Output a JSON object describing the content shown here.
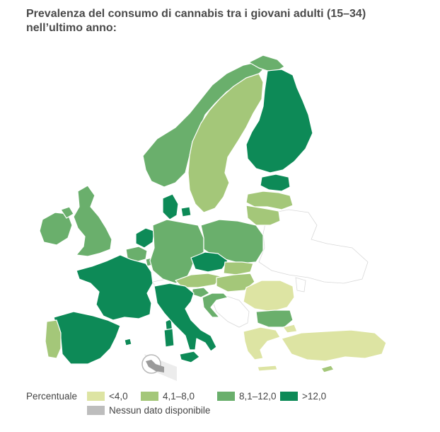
{
  "title": {
    "line1": "Prevalenza del consumo di cannabis tra i giovani adulti (15–34)",
    "line2": "nell’ultimo anno:"
  },
  "colors": {
    "low": "#dde4a3",
    "mid_low": "#a4c779",
    "mid_high": "#6aaf6c",
    "high": "#0d8a57",
    "no_data": "#ffffff",
    "no_data_swatch": "#bdbdbd",
    "border": "#ffffff"
  },
  "legend": {
    "label": "Percentuale",
    "items": [
      {
        "key": "low",
        "text": "<4,0"
      },
      {
        "key": "mid_low",
        "text": "4,1–8,0"
      },
      {
        "key": "mid_high",
        "text": "8,1–12,0"
      },
      {
        "key": "high",
        "text": ">12,0"
      }
    ],
    "no_data_text": "Nessun dato disponibile"
  },
  "countries": {
    "ireland": "mid_high",
    "united_kingdom": "mid_high",
    "iceland_norway": "mid_high",
    "norway": "mid_high",
    "sweden": "mid_low",
    "finland": "high",
    "estonia": "high",
    "latvia": "mid_low",
    "lithuania": "mid_low",
    "denmark": "high",
    "netherlands": "high",
    "belgium": "mid_high",
    "luxembourg": "mid_high",
    "france": "high",
    "spain": "high",
    "portugal": "mid_low",
    "germany": "mid_high",
    "poland": "mid_high",
    "czechia": "high",
    "austria": "mid_low",
    "switzerland": "no_data",
    "slovakia": "mid_low",
    "hungary": "mid_low",
    "slovenia": "mid_high",
    "croatia": "mid_high",
    "italy": "high",
    "romania": "low",
    "bulgaria": "mid_high",
    "greece": "low",
    "turkey": "low",
    "cyprus": "mid_low",
    "malta": "no_data"
  }
}
